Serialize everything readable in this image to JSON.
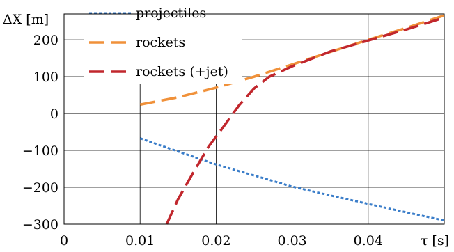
{
  "chart_data": {
    "type": "line",
    "xlabel": "τ [s]",
    "ylabel": "ΔX [m]",
    "xlim": [
      0,
      0.05
    ],
    "ylim": [
      -300,
      270
    ],
    "x_ticks": [
      0,
      0.01,
      0.02,
      0.03,
      0.04
    ],
    "x_tick_labels": [
      "0",
      "0.01",
      "0.02",
      "0.03",
      "0.04"
    ],
    "y_ticks": [
      -300,
      -200,
      -100,
      0,
      100,
      200
    ],
    "y_tick_labels": [
      "−300",
      "−200",
      "−100",
      "0",
      "100",
      "200"
    ],
    "grid": true,
    "legend_position": "top-left",
    "series": [
      {
        "name": "projectiles",
        "color": "#3a7dc9",
        "dash": "dotted",
        "x": [
          0.01,
          0.015,
          0.02,
          0.025,
          0.03,
          0.035,
          0.04,
          0.045,
          0.05
        ],
        "y": [
          -67,
          -103,
          -138,
          -168,
          -198,
          -222,
          -245,
          -268,
          -290
        ]
      },
      {
        "name": "rockets",
        "color": "#f0913a",
        "dash": "dashed",
        "x": [
          0.01,
          0.015,
          0.02,
          0.025,
          0.03,
          0.035,
          0.04,
          0.045,
          0.05
        ],
        "y": [
          24,
          44,
          70,
          100,
          133,
          167,
          200,
          232,
          266
        ]
      },
      {
        "name": "rockets (+jet)",
        "color": "#c1272d",
        "dash": "dashed",
        "x": [
          0.0135,
          0.015,
          0.017,
          0.019,
          0.021,
          0.023,
          0.025,
          0.027,
          0.03,
          0.035,
          0.04,
          0.045,
          0.05
        ],
        "y": [
          -300,
          -232,
          -160,
          -90,
          -35,
          22,
          68,
          100,
          128,
          168,
          198,
          228,
          260
        ]
      }
    ]
  }
}
